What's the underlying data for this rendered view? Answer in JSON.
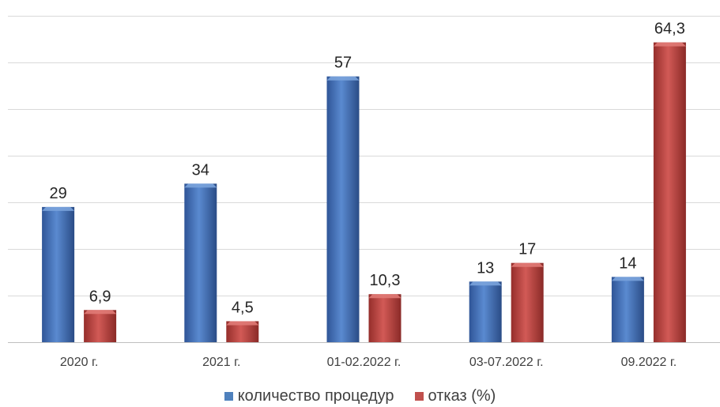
{
  "chart_data": {
    "type": "bar",
    "categories": [
      "2020 г.",
      "2021 г.",
      "01-02.2022 г.",
      "03-07.2022 г.",
      "09.2022 г."
    ],
    "series": [
      {
        "name": "количество процедур",
        "color": "#4f81bd",
        "values": [
          29,
          34,
          57,
          13,
          14
        ],
        "labels": [
          "29",
          "34",
          "57",
          "13",
          "14"
        ]
      },
      {
        "name": "отказ (%)",
        "color": "#c0504d",
        "values": [
          6.9,
          4.5,
          10.3,
          17,
          64.3
        ],
        "labels": [
          "6,9",
          "4,5",
          "10,3",
          "17",
          "64,3"
        ]
      }
    ],
    "ylim": [
      0,
      70
    ],
    "grid": true,
    "legend_position": "bottom",
    "title": "",
    "xlabel": "",
    "ylabel": ""
  }
}
